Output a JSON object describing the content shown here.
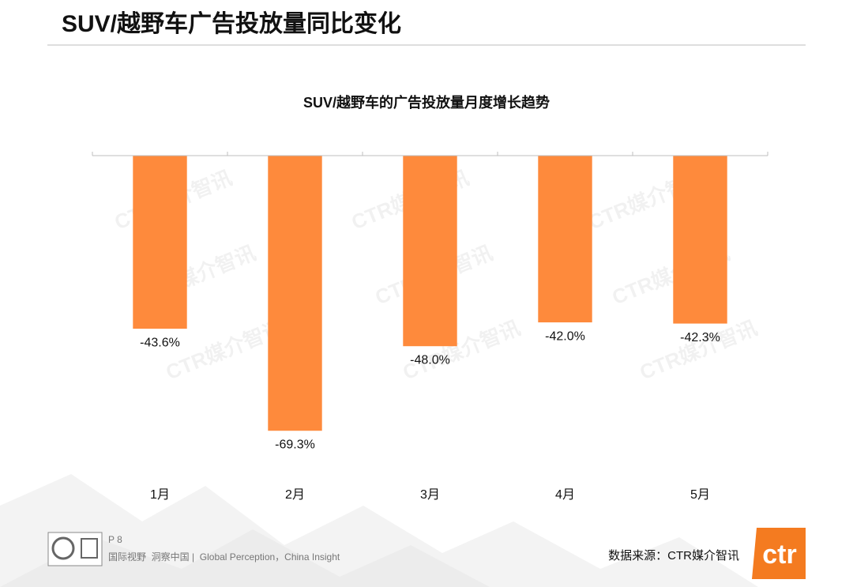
{
  "header": {
    "title": "SUV/越野车广告投放量同比变化"
  },
  "chart_data": {
    "type": "bar",
    "title": "SUV/越野车的广告投放量月度增长趋势",
    "categories": [
      "1月",
      "2月",
      "3月",
      "4月",
      "5月"
    ],
    "values": [
      -43.6,
      -69.3,
      -48.0,
      -42.0,
      -42.3
    ],
    "value_labels": [
      "-43.6%",
      "-69.3%",
      "-48.0%",
      "-42.0%",
      "-42.3%"
    ],
    "color": "#fe8a3c",
    "ylim": [
      -80,
      0
    ],
    "grid": false
  },
  "watermark": "CTR媒介智讯",
  "footer": {
    "page": "P 8",
    "slogan": "国际视野  洞察中国 |  Global Perception，China Insight",
    "source": "数据来源：CTR媒介智讯",
    "logo": "ctr"
  }
}
